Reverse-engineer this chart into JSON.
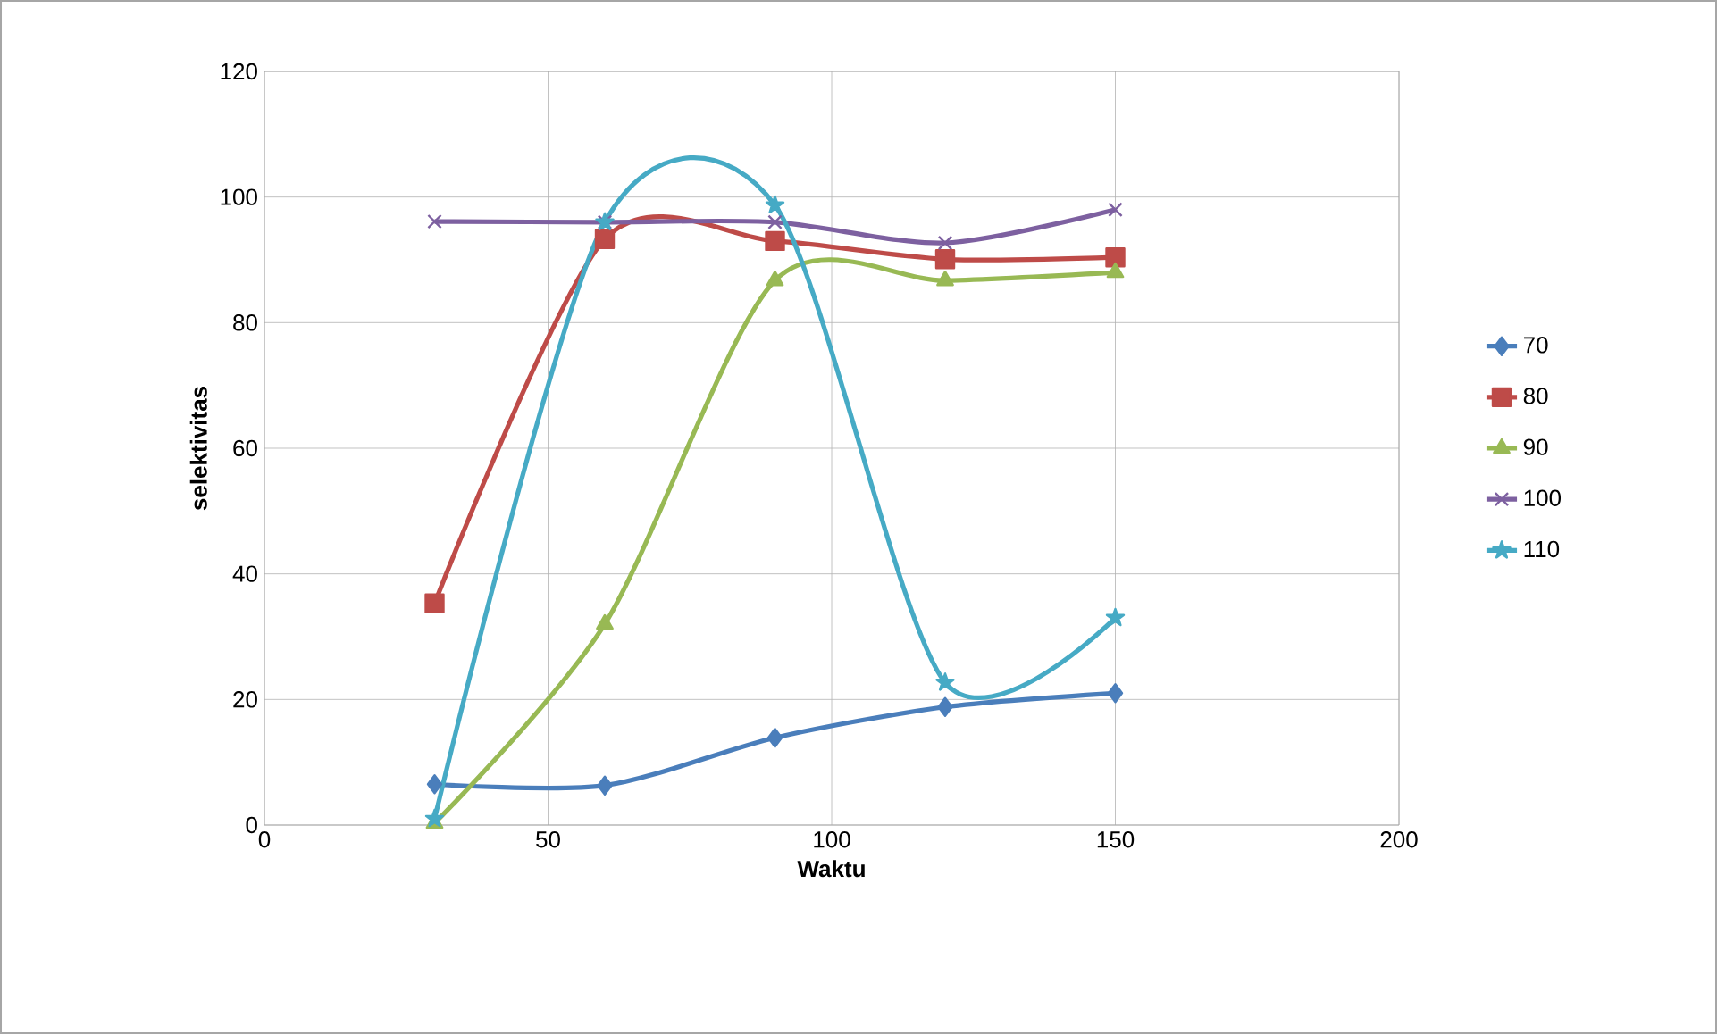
{
  "chart_data": {
    "type": "line",
    "xlabel": "Waktu",
    "ylabel": "selektivitas",
    "x": [
      30,
      60,
      90,
      120,
      150
    ],
    "xlim": [
      0,
      200
    ],
    "xticks": [
      0,
      50,
      100,
      150,
      200
    ],
    "ylim": [
      0,
      120
    ],
    "yticks": [
      0,
      20,
      40,
      60,
      80,
      100,
      120
    ],
    "grid": true,
    "legend": "right",
    "series": [
      {
        "name": "70",
        "color": "#4a7ebb",
        "marker": "diamond",
        "values": [
          6.5,
          6.3,
          13.9,
          18.8,
          21
        ]
      },
      {
        "name": "80",
        "color": "#be4b48",
        "marker": "square",
        "values": [
          35.3,
          93.3,
          93,
          90.1,
          90.4
        ]
      },
      {
        "name": "90",
        "color": "#98b954",
        "marker": "triangle",
        "values": [
          0.3,
          32,
          86.7,
          86.7,
          88
        ]
      },
      {
        "name": "100",
        "color": "#7d60a0",
        "marker": "cross",
        "values": [
          96.1,
          96,
          96,
          92.7,
          98
        ]
      },
      {
        "name": "110",
        "color": "#46aac5",
        "marker": "star",
        "values": [
          1,
          96,
          98.7,
          22.7,
          33
        ]
      }
    ]
  }
}
